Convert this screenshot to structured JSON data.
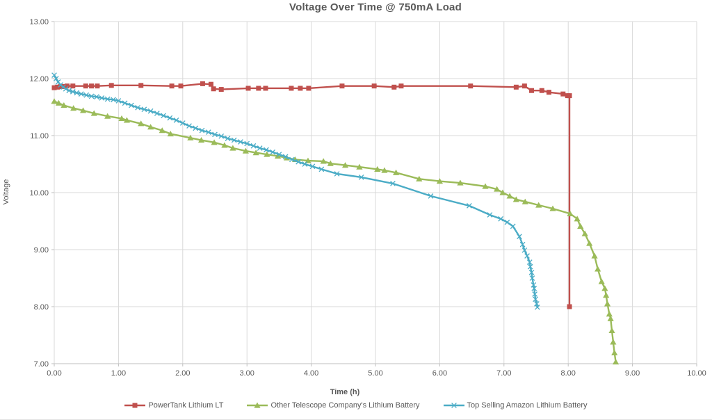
{
  "chart_data": {
    "type": "line",
    "title": "Voltage Over Time @ 750mA Load",
    "xlabel": "Time (h)",
    "ylabel": "Voltage",
    "xlim": [
      0,
      10
    ],
    "ylim": [
      7,
      13
    ],
    "grid": true,
    "legend_position": "bottom",
    "x_tick_values": [
      0,
      1,
      2,
      3,
      4,
      5,
      6,
      7,
      8,
      9,
      10
    ],
    "x_tick_labels": [
      "0.00",
      "1.00",
      "2.00",
      "3.00",
      "4.00",
      "5.00",
      "6.00",
      "7.00",
      "8.00",
      "9.00",
      "10.00"
    ],
    "y_tick_values": [
      7,
      8,
      9,
      10,
      11,
      12,
      13
    ],
    "y_tick_labels": [
      "7.00",
      "8.00",
      "9.00",
      "10.00",
      "11.00",
      "12.00",
      "13.00"
    ],
    "colors": {
      "grid": "#d9d9d9",
      "axis": "#bfbfbf",
      "text": "#595959"
    },
    "series": [
      {
        "name": "PowerTank Lithium LT",
        "color": "#c0504d",
        "marker": "square",
        "x": [
          0.0,
          0.05,
          0.1,
          0.15,
          0.2,
          0.29,
          0.49,
          0.58,
          0.67,
          0.89,
          1.35,
          1.83,
          1.97,
          2.31,
          2.44,
          2.48,
          2.6,
          3.02,
          3.18,
          3.29,
          3.69,
          3.83,
          3.96,
          4.48,
          4.98,
          5.29,
          5.4,
          6.48,
          7.19,
          7.32,
          7.43,
          7.59,
          7.7,
          7.92,
          7.99,
          8.02,
          8.02
        ],
        "y": [
          11.84,
          11.85,
          11.86,
          11.86,
          11.87,
          11.87,
          11.87,
          11.87,
          11.87,
          11.88,
          11.88,
          11.87,
          11.87,
          11.91,
          11.9,
          11.82,
          11.81,
          11.83,
          11.83,
          11.83,
          11.83,
          11.83,
          11.83,
          11.87,
          11.87,
          11.85,
          11.87,
          11.87,
          11.85,
          11.87,
          11.79,
          11.79,
          11.76,
          11.73,
          11.7,
          11.7,
          8.0
        ]
      },
      {
        "name": "Other Telescope Company's Lithium Battery",
        "color": "#9bbb59",
        "marker": "triangle",
        "x": [
          0.0,
          0.07,
          0.15,
          0.3,
          0.45,
          0.62,
          0.83,
          1.05,
          1.13,
          1.35,
          1.5,
          1.68,
          1.81,
          2.12,
          2.29,
          2.49,
          2.65,
          2.78,
          2.98,
          3.14,
          3.31,
          3.48,
          3.62,
          3.75,
          3.95,
          4.19,
          4.3,
          4.53,
          4.75,
          5.03,
          5.14,
          5.32,
          5.68,
          6.0,
          6.32,
          6.71,
          6.89,
          6.98,
          7.09,
          7.19,
          7.33,
          7.54,
          7.76,
          8.03,
          8.14,
          8.19,
          8.26,
          8.33,
          8.41,
          8.46,
          8.52,
          8.57,
          8.59,
          8.61,
          8.64,
          8.66,
          8.68,
          8.7,
          8.72,
          8.74
        ],
        "y": [
          11.6,
          11.57,
          11.53,
          11.48,
          11.44,
          11.39,
          11.34,
          11.3,
          11.27,
          11.21,
          11.15,
          11.09,
          11.03,
          10.96,
          10.92,
          10.88,
          10.83,
          10.78,
          10.73,
          10.7,
          10.67,
          10.64,
          10.61,
          10.58,
          10.56,
          10.55,
          10.51,
          10.48,
          10.45,
          10.41,
          10.39,
          10.35,
          10.24,
          10.2,
          10.17,
          10.11,
          10.06,
          10.0,
          9.94,
          9.88,
          9.84,
          9.78,
          9.72,
          9.63,
          9.54,
          9.41,
          9.28,
          9.11,
          8.89,
          8.66,
          8.44,
          8.32,
          8.2,
          8.05,
          7.87,
          7.79,
          7.58,
          7.38,
          7.19,
          7.03
        ]
      },
      {
        "name": "Top Selling Amazon Lithium Battery",
        "color": "#4bacc6",
        "marker": "x",
        "x": [
          0.0,
          0.03,
          0.06,
          0.1,
          0.14,
          0.18,
          0.23,
          0.29,
          0.35,
          0.42,
          0.5,
          0.58,
          0.66,
          0.74,
          0.83,
          0.92,
          1.0,
          1.1,
          1.2,
          1.3,
          1.4,
          1.5,
          1.6,
          1.7,
          1.8,
          1.9,
          2.0,
          2.1,
          2.2,
          2.3,
          2.4,
          2.5,
          2.6,
          2.7,
          2.8,
          2.9,
          3.0,
          3.1,
          3.2,
          3.3,
          3.4,
          3.5,
          3.6,
          3.7,
          3.8,
          3.9,
          4.02,
          4.16,
          4.4,
          4.78,
          5.27,
          5.86,
          6.46,
          6.78,
          6.95,
          7.05,
          7.14,
          7.24,
          7.29,
          7.32,
          7.36,
          7.4,
          7.41,
          7.43,
          7.44,
          7.46,
          7.47,
          7.48,
          7.49,
          7.51,
          7.52
        ],
        "y": [
          12.06,
          12.0,
          11.94,
          11.89,
          11.85,
          11.82,
          11.79,
          11.77,
          11.75,
          11.73,
          11.71,
          11.69,
          11.68,
          11.66,
          11.64,
          11.63,
          11.61,
          11.57,
          11.53,
          11.49,
          11.46,
          11.43,
          11.39,
          11.35,
          11.31,
          11.27,
          11.22,
          11.17,
          11.13,
          11.09,
          11.06,
          11.02,
          10.99,
          10.95,
          10.92,
          10.89,
          10.86,
          10.82,
          10.78,
          10.75,
          10.71,
          10.67,
          10.63,
          10.58,
          10.54,
          10.5,
          10.46,
          10.41,
          10.33,
          10.27,
          10.16,
          9.94,
          9.77,
          9.61,
          9.54,
          9.48,
          9.41,
          9.23,
          9.09,
          8.99,
          8.89,
          8.78,
          8.7,
          8.6,
          8.5,
          8.38,
          8.32,
          8.22,
          8.13,
          8.05,
          7.99
        ]
      }
    ]
  }
}
